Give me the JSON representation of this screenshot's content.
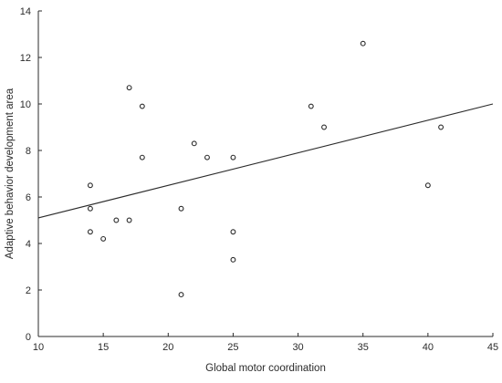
{
  "chart_data": {
    "type": "scatter",
    "title": "",
    "xlabel": "Global motor coordination",
    "ylabel": "Adaptive behavior development area",
    "xlim": [
      10,
      45
    ],
    "ylim": [
      0,
      14
    ],
    "xticks": [
      10,
      15,
      20,
      25,
      30,
      35,
      40,
      45
    ],
    "yticks": [
      0,
      2,
      4,
      6,
      8,
      10,
      12,
      14
    ],
    "grid": false,
    "legend": "none",
    "series": [
      {
        "x": [
          14,
          14,
          14,
          15,
          16,
          17,
          17,
          18,
          18,
          21,
          21,
          22,
          23,
          25,
          25,
          25,
          31,
          32,
          35,
          40,
          41
        ],
        "y": [
          6.5,
          5.5,
          4.5,
          4.2,
          5.0,
          10.7,
          5.0,
          9.9,
          7.7,
          5.5,
          1.8,
          8.3,
          7.7,
          7.7,
          4.5,
          3.3,
          9.9,
          9.0,
          12.6,
          6.5,
          9.0
        ]
      }
    ],
    "regression_line": {
      "x": [
        10,
        45
      ],
      "y": [
        5.1,
        10.0
      ]
    },
    "colors": {
      "axis": "#2b2b2b",
      "marker": "#2b2b2b",
      "line": "#2b2b2b"
    }
  }
}
